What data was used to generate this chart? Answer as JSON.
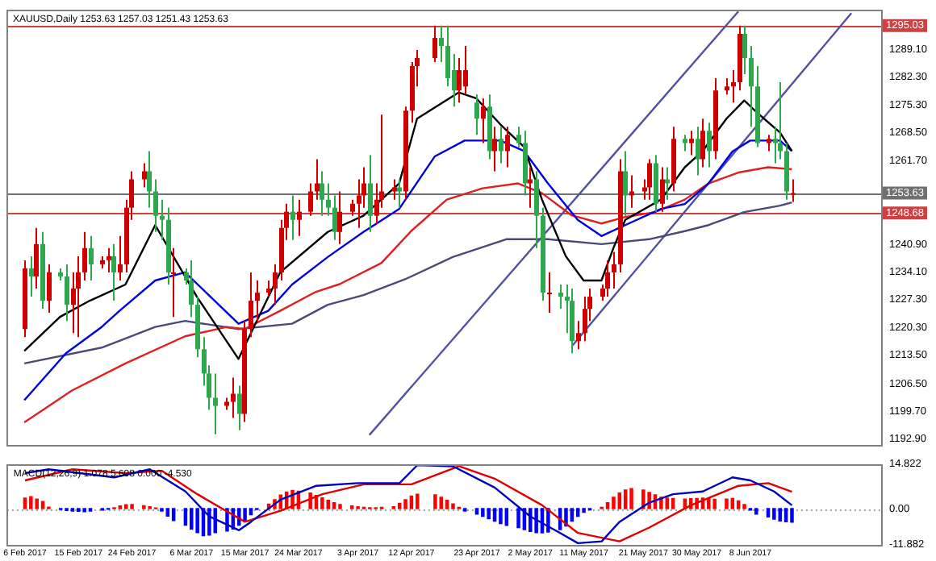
{
  "chart_data": [
    {
      "type": "candlestick",
      "title": "XAUUSD,Daily 1253.63 1257.03 1251.43 1253.63",
      "x": [
        "2017-02-06",
        "2017-02-07",
        "2017-02-08",
        "2017-02-09",
        "2017-02-10",
        "2017-02-12",
        "2017-02-13",
        "2017-02-14",
        "2017-02-15",
        "2017-02-16",
        "2017-02-17",
        "2017-02-19",
        "2017-02-20",
        "2017-02-21",
        "2017-02-22",
        "2017-02-23",
        "2017-02-24",
        "2017-02-26",
        "2017-02-27",
        "2017-02-28",
        "2017-03-01",
        "2017-03-02",
        "2017-03-03",
        "2017-03-05",
        "2017-03-06",
        "2017-03-07",
        "2017-03-08",
        "2017-03-09",
        "2017-03-10",
        "2017-03-12",
        "2017-03-13",
        "2017-03-14",
        "2017-03-15",
        "2017-03-16",
        "2017-03-17",
        "2017-03-19",
        "2017-03-20",
        "2017-03-21",
        "2017-03-22",
        "2017-03-23",
        "2017-03-24",
        "2017-03-26",
        "2017-03-27",
        "2017-03-28",
        "2017-03-29",
        "2017-03-30",
        "2017-03-31",
        "2017-04-02",
        "2017-04-03",
        "2017-04-04",
        "2017-04-05",
        "2017-04-06",
        "2017-04-07",
        "2017-04-09",
        "2017-04-10",
        "2017-04-11",
        "2017-04-12",
        "2017-04-13",
        "2017-04-16",
        "2017-04-17",
        "2017-04-18",
        "2017-04-19",
        "2017-04-20",
        "2017-04-21",
        "2017-04-23",
        "2017-04-24",
        "2017-04-25",
        "2017-04-26",
        "2017-04-27",
        "2017-04-28",
        "2017-04-30",
        "2017-05-01",
        "2017-05-02",
        "2017-05-03",
        "2017-05-04",
        "2017-05-05",
        "2017-05-07",
        "2017-05-08",
        "2017-05-09",
        "2017-05-10",
        "2017-05-11",
        "2017-05-12",
        "2017-05-14",
        "2017-05-15",
        "2017-05-16",
        "2017-05-17",
        "2017-05-18",
        "2017-05-19",
        "2017-05-21",
        "2017-05-22",
        "2017-05-23",
        "2017-05-24",
        "2017-05-25",
        "2017-05-26",
        "2017-05-28",
        "2017-05-29",
        "2017-05-30",
        "2017-05-31",
        "2017-06-01",
        "2017-06-02",
        "2017-06-04",
        "2017-06-05",
        "2017-06-06",
        "2017-06-07",
        "2017-06-08",
        "2017-06-09",
        "2017-06-11",
        "2017-06-12",
        "2017-06-13",
        "2017-06-14",
        "2017-06-15"
      ],
      "ohlc": [
        [
          1220,
          1237,
          1218,
          1235
        ],
        [
          1235,
          1238,
          1228,
          1233
        ],
        [
          1233,
          1245,
          1230,
          1241
        ],
        [
          1241,
          1244,
          1225,
          1227
        ],
        [
          1227,
          1236,
          1224,
          1234
        ],
        [
          1234,
          1235,
          1232,
          1233
        ],
        [
          1233,
          1236,
          1222,
          1226
        ],
        [
          1226,
          1234,
          1219,
          1230
        ],
        [
          1230,
          1238,
          1218,
          1234
        ],
        [
          1234,
          1244,
          1232,
          1240
        ],
        [
          1240,
          1243,
          1232,
          1236
        ],
        [
          1236,
          1238,
          1235,
          1237
        ],
        [
          1237,
          1240,
          1234,
          1238
        ],
        [
          1238,
          1241,
          1227,
          1234
        ],
        [
          1234,
          1243,
          1232,
          1236
        ],
        [
          1236,
          1252,
          1234,
          1250
        ],
        [
          1250,
          1259,
          1247,
          1257
        ],
        [
          1257,
          1261,
          1255,
          1259
        ],
        [
          1259,
          1264,
          1250,
          1254
        ],
        [
          1254,
          1257,
          1244,
          1248
        ],
        [
          1248,
          1252,
          1242,
          1247
        ],
        [
          1247,
          1250,
          1231,
          1234
        ],
        [
          1234,
          1240,
          1223,
          1234
        ],
        [
          1234,
          1235,
          1231,
          1232
        ],
        [
          1232,
          1237,
          1223,
          1226
        ],
        [
          1226,
          1228,
          1213,
          1215
        ],
        [
          1215,
          1218,
          1206,
          1209
        ],
        [
          1209,
          1211,
          1200,
          1203
        ],
        [
          1203,
          1209,
          1194,
          1201
        ],
        [
          1201,
          1203,
          1200,
          1202
        ],
        [
          1202,
          1208,
          1198,
          1204
        ],
        [
          1204,
          1206,
          1195,
          1199
        ],
        [
          1199,
          1222,
          1197,
          1220
        ],
        [
          1220,
          1234,
          1218,
          1227
        ],
        [
          1227,
          1232,
          1222,
          1229
        ],
        [
          1229,
          1232,
          1228,
          1230
        ],
        [
          1230,
          1236,
          1226,
          1234
        ],
        [
          1234,
          1247,
          1232,
          1245
        ],
        [
          1245,
          1251,
          1242,
          1249
        ],
        [
          1249,
          1253,
          1242,
          1247
        ],
        [
          1247,
          1252,
          1243,
          1249
        ],
        [
          1249,
          1256,
          1248,
          1254
        ],
        [
          1254,
          1262,
          1252,
          1256
        ],
        [
          1256,
          1259,
          1248,
          1252
        ],
        [
          1252,
          1256,
          1248,
          1250
        ],
        [
          1250,
          1253,
          1242,
          1244
        ],
        [
          1244,
          1254,
          1241,
          1249
        ],
        [
          1249,
          1252,
          1248,
          1251
        ],
        [
          1251,
          1257,
          1245,
          1253
        ],
        [
          1253,
          1260,
          1250,
          1256
        ],
        [
          1256,
          1263,
          1244,
          1248
        ],
        [
          1248,
          1256,
          1246,
          1252
        ],
        [
          1252,
          1273,
          1250,
          1254
        ],
        [
          1254,
          1257,
          1252,
          1255
        ],
        [
          1255,
          1257,
          1250,
          1254
        ],
        [
          1254,
          1275,
          1252,
          1274
        ],
        [
          1274,
          1286,
          1271,
          1285
        ],
        [
          1285,
          1289,
          1280,
          1287
        ],
        [
          1287,
          1295,
          1286,
          1292
        ],
        [
          1292,
          1295,
          1286,
          1290
        ],
        [
          1290,
          1295,
          1280,
          1282
        ],
        [
          1284,
          1288,
          1275,
          1279
        ],
        [
          1279,
          1287,
          1276,
          1284
        ],
        [
          1280,
          1290,
          1278,
          1284
        ],
        [
          1276,
          1278,
          1268,
          1272
        ],
        [
          1272,
          1277,
          1266,
          1275
        ],
        [
          1275,
          1278,
          1262,
          1264
        ],
        [
          1264,
          1270,
          1259,
          1267
        ],
        [
          1267,
          1270,
          1261,
          1264
        ],
        [
          1264,
          1270,
          1260,
          1268
        ],
        [
          1268,
          1270,
          1265,
          1266
        ],
        [
          1266,
          1269,
          1253,
          1256
        ],
        [
          1256,
          1260,
          1250,
          1257
        ],
        [
          1257,
          1259,
          1240,
          1248
        ],
        [
          1248,
          1250,
          1227,
          1229
        ],
        [
          1229,
          1234,
          1224,
          1229
        ],
        [
          1229,
          1231,
          1225,
          1228
        ],
        [
          1228,
          1231,
          1219,
          1227
        ],
        [
          1227,
          1230,
          1214,
          1217
        ],
        [
          1217,
          1222,
          1215,
          1219
        ],
        [
          1219,
          1228,
          1217,
          1225
        ],
        [
          1225,
          1230,
          1222,
          1228
        ],
        [
          1228,
          1231,
          1227,
          1230
        ],
        [
          1230,
          1237,
          1228,
          1234
        ],
        [
          1234,
          1239,
          1230,
          1236
        ],
        [
          1236,
          1262,
          1234,
          1259
        ],
        [
          1259,
          1264,
          1248,
          1253
        ],
        [
          1253,
          1258,
          1250,
          1254
        ],
        [
          1254,
          1257,
          1252,
          1255
        ],
        [
          1255,
          1262,
          1252,
          1261
        ],
        [
          1261,
          1263,
          1249,
          1251
        ],
        [
          1251,
          1260,
          1249,
          1257
        ],
        [
          1257,
          1260,
          1252,
          1256
        ],
        [
          1256,
          1270,
          1254,
          1267
        ],
        [
          1267,
          1268,
          1264,
          1266
        ],
        [
          1266,
          1269,
          1263,
          1267
        ],
        [
          1267,
          1270,
          1258,
          1262
        ],
        [
          1262,
          1272,
          1260,
          1269
        ],
        [
          1269,
          1271,
          1260,
          1264
        ],
        [
          1264,
          1282,
          1262,
          1279
        ],
        [
          1279,
          1282,
          1278,
          1280
        ],
        [
          1280,
          1284,
          1276,
          1281
        ],
        [
          1281,
          1295,
          1279,
          1293
        ],
        [
          1293,
          1295,
          1283,
          1287
        ],
        [
          1287,
          1290,
          1270,
          1280
        ],
        [
          1280,
          1285,
          1265,
          1266
        ],
        [
          1266,
          1268,
          1264,
          1267
        ],
        [
          1267,
          1270,
          1261,
          1266
        ],
        [
          1266,
          1281,
          1262,
          1264
        ],
        [
          1264,
          1266,
          1252,
          1254
        ],
        [
          1253.63,
          1257.03,
          1251.43,
          1253.63
        ]
      ],
      "colors": [
        "#d00000",
        "#2ea84f",
        "#d00000",
        "#2ea84f",
        "#d00000",
        "#2ea84f",
        "#2ea84f",
        "#d00000",
        "#d00000",
        "#d00000",
        "#2ea84f",
        "#d00000",
        "#d00000",
        "#2ea84f",
        "#d00000",
        "#d00000",
        "#d00000",
        "#d00000",
        "#2ea84f",
        "#2ea84f",
        "#2ea84f",
        "#2ea84f",
        "#d00000",
        "#2ea84f",
        "#2ea84f",
        "#2ea84f",
        "#2ea84f",
        "#2ea84f",
        "#2ea84f",
        "#d00000",
        "#d00000",
        "#2ea84f",
        "#d00000",
        "#d00000",
        "#d00000",
        "#d00000",
        "#d00000",
        "#d00000",
        "#d00000",
        "#2ea84f",
        "#d00000",
        "#d00000",
        "#d00000",
        "#2ea84f",
        "#2ea84f",
        "#2ea84f",
        "#d00000",
        "#d00000",
        "#d00000",
        "#d00000",
        "#2ea84f",
        "#d00000",
        "#d00000",
        "#d00000",
        "#2ea84f",
        "#d00000",
        "#d00000",
        "#d00000",
        "#d00000",
        "#2ea84f",
        "#2ea84f",
        "#2ea84f",
        "#d00000",
        "#d00000",
        "#2ea84f",
        "#d00000",
        "#2ea84f",
        "#d00000",
        "#2ea84f",
        "#d00000",
        "#2ea84f",
        "#2ea84f",
        "#d00000",
        "#2ea84f",
        "#2ea84f",
        "#d00000",
        "#2ea84f",
        "#2ea84f",
        "#2ea84f",
        "#d00000",
        "#d00000",
        "#d00000",
        "#d00000",
        "#d00000",
        "#d00000",
        "#d00000",
        "#2ea84f",
        "#d00000",
        "#d00000",
        "#d00000",
        "#2ea84f",
        "#d00000",
        "#2ea84f",
        "#d00000",
        "#2ea84f",
        "#d00000",
        "#2ea84f",
        "#d00000",
        "#2ea84f",
        "#d00000",
        "#d00000",
        "#d00000",
        "#d00000",
        "#2ea84f",
        "#2ea84f",
        "#2ea84f",
        "#d00000",
        "#2ea84f",
        "#2ea84f",
        "#2ea84f",
        "#d00000"
      ],
      "series": [
        {
          "type": "line",
          "color": "#000000",
          "x": [
            "2017-02-06",
            "2017-02-12",
            "2017-02-17",
            "2017-02-23",
            "2017-02-28",
            "2017-03-07",
            "2017-03-14",
            "2017-03-21",
            "2017-03-29",
            "2017-04-04",
            "2017-04-10",
            "2017-04-13",
            "2017-04-20",
            "2017-04-23",
            "2017-04-27",
            "2017-05-01",
            "2017-05-04",
            "2017-05-08",
            "2017-05-11",
            "2017-05-14",
            "2017-05-16",
            "2017-05-18",
            "2017-05-24",
            "2017-05-28",
            "2017-05-31",
            "2017-06-04",
            "2017-06-07",
            "2017-06-09",
            "2017-06-13",
            "2017-06-15"
          ],
          "values": [
            1214.6,
            1223,
            1227,
            1231,
            1245.7,
            1228,
            1212.6,
            1234,
            1244,
            1248,
            1256,
            1272,
            1278.5,
            1277,
            1270.6,
            1265,
            1252,
            1238,
            1232,
            1232,
            1240,
            1247,
            1252,
            1260,
            1264,
            1272,
            1276.5,
            1273.7,
            1268.6,
            1264
          ]
        },
        {
          "type": "line",
          "color": "#0000e0",
          "x": [
            "2017-02-06",
            "2017-02-13",
            "2017-02-19",
            "2017-02-22",
            "2017-02-28",
            "2017-03-05",
            "2017-03-09",
            "2017-03-14",
            "2017-03-19",
            "2017-03-23",
            "2017-03-29",
            "2017-04-04",
            "2017-04-10",
            "2017-04-16",
            "2017-04-21",
            "2017-04-27",
            "2017-05-01",
            "2017-05-05",
            "2017-05-10",
            "2017-05-14",
            "2017-05-18",
            "2017-05-24",
            "2017-05-28",
            "2017-06-01",
            "2017-06-05",
            "2017-06-08",
            "2017-06-13",
            "2017-06-15"
          ],
          "values": [
            1202.4,
            1214,
            1220.5,
            1224.5,
            1232,
            1234,
            1228.4,
            1221.3,
            1224.5,
            1231,
            1237.8,
            1244,
            1249.7,
            1262.7,
            1266.6,
            1266.6,
            1264,
            1256,
            1247,
            1243,
            1245.7,
            1249.7,
            1250.9,
            1256,
            1263.9,
            1266.6,
            1266.6,
            1264
          ]
        },
        {
          "type": "line",
          "color": "#e02020",
          "x": [
            "2017-02-06",
            "2017-02-14",
            "2017-02-23",
            "2017-03-05",
            "2017-03-12",
            "2017-03-15",
            "2017-03-21",
            "2017-03-27",
            "2017-03-31",
            "2017-04-07",
            "2017-04-12",
            "2017-04-18",
            "2017-04-24",
            "2017-04-30",
            "2017-05-04",
            "2017-05-09",
            "2017-05-14",
            "2017-05-18",
            "2017-05-23",
            "2017-05-28",
            "2017-06-01",
            "2017-06-06",
            "2017-06-11",
            "2017-06-15"
          ],
          "values": [
            1196.9,
            1204.8,
            1211.5,
            1218.2,
            1220.5,
            1220,
            1224.5,
            1229.2,
            1231.1,
            1236.3,
            1244.2,
            1252,
            1254.8,
            1256,
            1253.6,
            1248.1,
            1246.1,
            1247.7,
            1248.9,
            1252,
            1256,
            1258.7,
            1260,
            1259.5
          ]
        },
        {
          "type": "line",
          "color": "#4a4a7a",
          "x": [
            "2017-02-06",
            "2017-02-19",
            "2017-02-28",
            "2017-03-05",
            "2017-03-14",
            "2017-03-23",
            "2017-03-29",
            "2017-04-04",
            "2017-04-11",
            "2017-04-19",
            "2017-04-28",
            "2017-05-05",
            "2017-05-14",
            "2017-05-22",
            "2017-05-28",
            "2017-06-01",
            "2017-06-07",
            "2017-06-13",
            "2017-06-15"
          ],
          "values": [
            1211.5,
            1215.4,
            1220.5,
            1222,
            1220,
            1221.3,
            1226,
            1228.4,
            1232.3,
            1237.8,
            1242.2,
            1242.2,
            1241,
            1242.2,
            1244.2,
            1245.7,
            1248.9,
            1250.5,
            1251.3
          ]
        },
        {
          "type": "line",
          "color": "#5050a0",
          "x": [
            "2017-04-05",
            "2017-06-06"
          ],
          "values": [
            1193.8,
            1298.5
          ]
        },
        {
          "type": "line",
          "color": "#5050a0",
          "x": [
            "2017-05-09",
            "2017-06-25"
          ],
          "values": [
            1215.7,
            1298.1
          ]
        }
      ],
      "ref_lines": [
        {
          "axis": "y",
          "value": 1295.03,
          "label": "1295.03",
          "color": "#d04040"
        },
        {
          "axis": "y",
          "value": 1253.63,
          "label": "1253.63",
          "color": "#707070"
        },
        {
          "axis": "y",
          "value": 1248.68,
          "label": "1248.68",
          "color": "#d04040"
        }
      ],
      "xlim": [
        "2017-02-03",
        "2017-06-30"
      ],
      "ylim": [
        1191.3,
        1299
      ],
      "yticks": [
        {
          "value": 1289.1,
          "label": "1289.10"
        },
        {
          "value": 1282.3,
          "label": "1282.30"
        },
        {
          "value": 1275.3,
          "label": "1275.30"
        },
        {
          "value": 1268.5,
          "label": "1268.50"
        },
        {
          "value": 1261.7,
          "label": "1261.70"
        },
        {
          "value": 1240.9,
          "label": "1240.90"
        },
        {
          "value": 1234.1,
          "label": "1234.10"
        },
        {
          "value": 1227.3,
          "label": "1227.30"
        },
        {
          "value": 1220.3,
          "label": "1220.30"
        },
        {
          "value": 1213.5,
          "label": "1213.50"
        },
        {
          "value": 1206.5,
          "label": "1206.50"
        },
        {
          "value": 1199.7,
          "label": "1199.70"
        },
        {
          "value": 1192.9,
          "label": "1192.90"
        }
      ],
      "tick_labels": "y"
    },
    {
      "type": "bar",
      "title": "MACD(12,26,9) 1.078 5.608 0.000 -4.530",
      "x": [
        "2017-02-06",
        "2017-02-07",
        "2017-02-08",
        "2017-02-09",
        "2017-02-10",
        "2017-02-12",
        "2017-02-13",
        "2017-02-14",
        "2017-02-15",
        "2017-02-16",
        "2017-02-17",
        "2017-02-19",
        "2017-02-20",
        "2017-02-21",
        "2017-02-22",
        "2017-02-23",
        "2017-02-24",
        "2017-02-26",
        "2017-02-27",
        "2017-02-28",
        "2017-03-01",
        "2017-03-02",
        "2017-03-03",
        "2017-03-05",
        "2017-03-06",
        "2017-03-07",
        "2017-03-08",
        "2017-03-09",
        "2017-03-10",
        "2017-03-12",
        "2017-03-13",
        "2017-03-14",
        "2017-03-15",
        "2017-03-16",
        "2017-03-17",
        "2017-03-19",
        "2017-03-20",
        "2017-03-21",
        "2017-03-22",
        "2017-03-23",
        "2017-03-24",
        "2017-03-26",
        "2017-03-27",
        "2017-03-28",
        "2017-03-29",
        "2017-03-30",
        "2017-03-31",
        "2017-04-02",
        "2017-04-03",
        "2017-04-04",
        "2017-04-05",
        "2017-04-06",
        "2017-04-07",
        "2017-04-09",
        "2017-04-10",
        "2017-04-11",
        "2017-04-12",
        "2017-04-13",
        "2017-04-16",
        "2017-04-17",
        "2017-04-18",
        "2017-04-19",
        "2017-04-20",
        "2017-04-21",
        "2017-04-23",
        "2017-04-24",
        "2017-04-25",
        "2017-04-26",
        "2017-04-27",
        "2017-04-28",
        "2017-04-30",
        "2017-05-01",
        "2017-05-02",
        "2017-05-03",
        "2017-05-04",
        "2017-05-05",
        "2017-05-07",
        "2017-05-08",
        "2017-05-09",
        "2017-05-10",
        "2017-05-11",
        "2017-05-12",
        "2017-05-14",
        "2017-05-15",
        "2017-05-16",
        "2017-05-17",
        "2017-05-18",
        "2017-05-19",
        "2017-05-21",
        "2017-05-22",
        "2017-05-23",
        "2017-05-24",
        "2017-05-25",
        "2017-05-26",
        "2017-05-28",
        "2017-05-29",
        "2017-05-30",
        "2017-05-31",
        "2017-06-01",
        "2017-06-02",
        "2017-06-04",
        "2017-06-05",
        "2017-06-06",
        "2017-06-07",
        "2017-06-08",
        "2017-06-09",
        "2017-06-11",
        "2017-06-12",
        "2017-06-13",
        "2017-06-14",
        "2017-06-15"
      ],
      "series": [
        {
          "values": [
            3.5,
            4.0,
            3.2,
            2.4,
            0.5,
            -0.3,
            -0.6,
            -0.8,
            -0.9,
            -1.0,
            -0.8,
            -0.5,
            -0.2,
            0.3,
            0.9,
            1.3,
            1.4,
            1.0,
            0.6,
            0.2,
            -0.8,
            -2.5,
            -4,
            -5.5,
            -6.8,
            -8,
            -9,
            -8.8,
            -8,
            -7.5,
            -6.8,
            -5.5,
            -4,
            -2,
            -0.3,
            1.5,
            3,
            4.5,
            5.5,
            6.1,
            5.8,
            5.2,
            4.4,
            3.6,
            2.8,
            2.0,
            1.4,
            0.9,
            0.6,
            0.4,
            0.3,
            0.3,
            0.4,
            0.6,
            1.8,
            3,
            4.2,
            4.8,
            4.6,
            3.8,
            2.8,
            1.6,
            0.4,
            -0.8,
            -1.8,
            -2.6,
            -3.4,
            -4.2,
            -5,
            -5.6,
            -6.3,
            -7,
            -7.6,
            -8,
            -8.1,
            -7.8,
            -7,
            -5.8,
            -4.2,
            -2.6,
            -1.2,
            -0.4,
            0.4,
            2,
            3.8,
            5.2,
            6.2,
            6.7,
            6.2,
            5.4,
            4.6,
            3.8,
            3.5,
            3.4,
            3.2,
            3.3,
            3.4,
            3.5,
            3.3,
            3.1,
            3.2,
            3.4,
            2.6,
            1.4,
            -0.5,
            -1.8,
            -2.8,
            -3.5,
            -4.1,
            -4.4,
            -4.5
          ],
          "colors": [
            "#ff0000",
            "#ff0000",
            "#ff0000",
            "#ff0000",
            "#ff0000",
            "#0000ff",
            "#0000ff",
            "#0000ff",
            "#0000ff",
            "#0000ff",
            "#0000ff",
            "#0000ff",
            "#0000ff",
            "#ff0000",
            "#ff0000",
            "#ff0000",
            "#ff0000",
            "#ff0000",
            "#ff0000",
            "#ff0000",
            "#0000ff",
            "#0000ff",
            "#0000ff",
            "#0000ff",
            "#0000ff",
            "#0000ff",
            "#0000ff",
            "#0000ff",
            "#0000ff",
            "#0000ff",
            "#0000ff",
            "#0000ff",
            "#0000ff",
            "#0000ff",
            "#0000ff",
            "#ff0000",
            "#ff0000",
            "#ff0000",
            "#ff0000",
            "#ff0000",
            "#ff0000",
            "#ff0000",
            "#ff0000",
            "#ff0000",
            "#ff0000",
            "#ff0000",
            "#ff0000",
            "#ff0000",
            "#ff0000",
            "#ff0000",
            "#ff0000",
            "#ff0000",
            "#ff0000",
            "#ff0000",
            "#ff0000",
            "#ff0000",
            "#ff0000",
            "#ff0000",
            "#ff0000",
            "#ff0000",
            "#ff0000",
            "#ff0000",
            "#ff0000",
            "#0000ff",
            "#0000ff",
            "#0000ff",
            "#0000ff",
            "#0000ff",
            "#0000ff",
            "#0000ff",
            "#0000ff",
            "#0000ff",
            "#0000ff",
            "#0000ff",
            "#0000ff",
            "#0000ff",
            "#0000ff",
            "#0000ff",
            "#0000ff",
            "#0000ff",
            "#0000ff",
            "#0000ff",
            "#ff0000",
            "#ff0000",
            "#ff0000",
            "#ff0000",
            "#ff0000",
            "#ff0000",
            "#ff0000",
            "#ff0000",
            "#ff0000",
            "#ff0000",
            "#ff0000",
            "#ff0000",
            "#ff0000",
            "#ff0000",
            "#ff0000",
            "#ff0000",
            "#ff0000",
            "#ff0000",
            "#ff0000",
            "#ff0000",
            "#ff0000",
            "#ff0000",
            "#0000ff",
            "#0000ff",
            "#0000ff",
            "#0000ff",
            "#0000ff",
            "#0000ff",
            "#0000ff"
          ]
        },
        {
          "type": "line",
          "color": "#0000c0",
          "x": [
            "2017-02-06",
            "2017-02-10",
            "2017-02-21",
            "2017-02-27",
            "2017-03-05",
            "2017-03-09",
            "2017-03-14",
            "2017-03-16",
            "2017-03-21",
            "2017-03-27",
            "2017-04-03",
            "2017-04-10",
            "2017-04-13",
            "2017-04-19",
            "2017-04-26",
            "2017-05-02",
            "2017-05-07",
            "2017-05-10",
            "2017-05-14",
            "2017-05-17",
            "2017-05-22",
            "2017-05-26",
            "2017-05-31",
            "2017-06-05",
            "2017-06-08",
            "2017-06-12",
            "2017-06-15"
          ],
          "values": [
            11.8,
            13.1,
            10.4,
            13.1,
            5.7,
            -2.6,
            -7.2,
            -4.4,
            3.0,
            7.6,
            8.5,
            8.5,
            14.5,
            14.1,
            7.0,
            -2.6,
            -8.1,
            -11.5,
            -10.9,
            -4.4,
            2.0,
            4.8,
            5.7,
            10.4,
            9.4,
            5.7,
            1.1
          ]
        },
        {
          "type": "line",
          "color": "#e00000",
          "x": [
            "2017-02-06",
            "2017-02-14",
            "2017-02-23",
            "2017-03-01",
            "2017-03-07",
            "2017-03-15",
            "2017-03-21",
            "2017-03-28",
            "2017-04-04",
            "2017-04-12",
            "2017-04-20",
            "2017-04-26",
            "2017-05-04",
            "2017-05-10",
            "2017-05-17",
            "2017-05-22",
            "2017-05-29",
            "2017-06-06",
            "2017-06-11",
            "2017-06-15"
          ],
          "values": [
            9.4,
            13.1,
            11.8,
            12.6,
            4.8,
            -4.4,
            -0.7,
            4.8,
            8.1,
            8.1,
            14.1,
            10.0,
            1.1,
            -8.1,
            -10.9,
            -6.3,
            1.1,
            7.6,
            8.5,
            5.6
          ]
        }
      ],
      "ref_lines": [
        {
          "axis": "y",
          "value": 0,
          "color": "#a0a0a0",
          "line_style": "dotted"
        }
      ],
      "xlim": [
        "2017-02-03",
        "2017-06-30"
      ],
      "xticks": [
        {
          "value": "2017-02-06",
          "label": "6 Feb 2017"
        },
        {
          "value": "2017-02-15",
          "label": "15 Feb 2017"
        },
        {
          "value": "2017-02-24",
          "label": "24 Feb 2017"
        },
        {
          "value": "2017-03-06",
          "label": "6 Mar 2017"
        },
        {
          "value": "2017-03-15",
          "label": "15 Mar 2017"
        },
        {
          "value": "2017-03-24",
          "label": "24 Mar 2017"
        },
        {
          "value": "2017-04-03",
          "label": "3 Apr 2017"
        },
        {
          "value": "2017-04-12",
          "label": "12 Apr 2017"
        },
        {
          "value": "2017-04-23",
          "label": "23 Apr 2017"
        },
        {
          "value": "2017-05-02",
          "label": "2 May 2017"
        },
        {
          "value": "2017-05-11",
          "label": "11 May 2017"
        },
        {
          "value": "2017-05-21",
          "label": "21 May 2017"
        },
        {
          "value": "2017-05-30",
          "label": "30 May 2017"
        },
        {
          "value": "2017-06-08",
          "label": "8 Jun 2017"
        }
      ],
      "ylim": [
        -11.882,
        14.822
      ],
      "yticks": [
        14.822,
        {
          "value": 0,
          "label": "0.00"
        },
        -11.882
      ]
    }
  ]
}
